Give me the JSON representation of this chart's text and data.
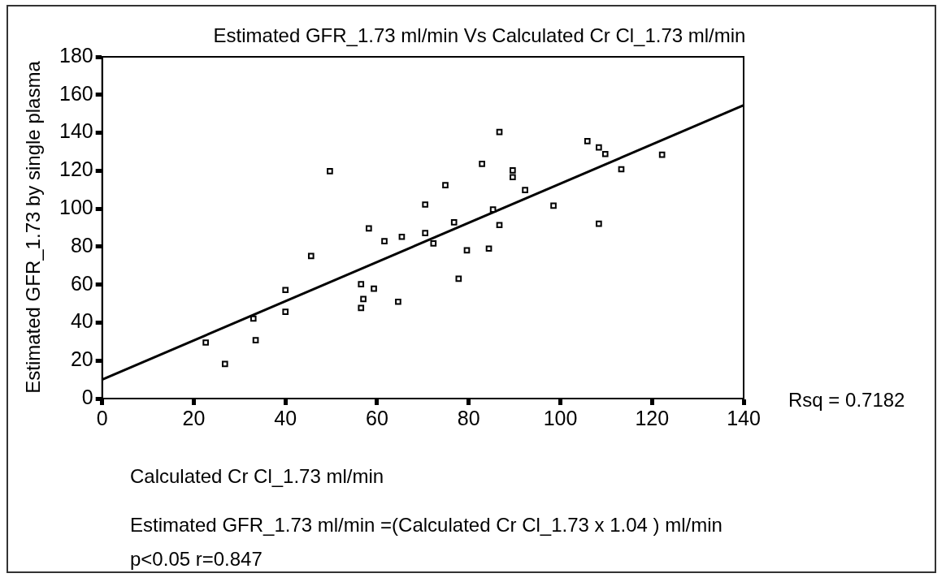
{
  "chart_data": {
    "type": "scatter",
    "title": "Estimated GFR_1.73 ml/min Vs Calculated Cr Cl_1.73 ml/min",
    "xlabel": "Calculated Cr Cl_1.73 ml/min",
    "ylabel": "Estimated GFR_1.73 by single plasma",
    "xlim": [
      0,
      140
    ],
    "xticks": [
      0,
      20,
      40,
      60,
      80,
      100,
      120,
      140
    ],
    "ylim": [
      0,
      180
    ],
    "yticks": [
      0,
      20,
      40,
      60,
      80,
      100,
      120,
      140,
      160,
      180
    ],
    "grid": false,
    "legend": false,
    "series": [
      {
        "marker": "square",
        "color": "#000000",
        "x": [
          22.6,
          26.8,
          33.0,
          33.5,
          40.0,
          40.0,
          45.6,
          49.7,
          56.5,
          57.0,
          56.5,
          59.3,
          64.6,
          58.2,
          61.6,
          65.4,
          70.5,
          70.5,
          72.3,
          74.9,
          76.8,
          77.8,
          79.6,
          82.9,
          84.4,
          85.3,
          86.7,
          86.7,
          89.6,
          89.6,
          92.3,
          98.5,
          105.9,
          108.4,
          108.4,
          109.8,
          113.3,
          122.2
        ],
        "values": [
          29.5,
          18.2,
          42.1,
          30.7,
          57.2,
          45.7,
          75.1,
          119.8,
          60.2,
          52.4,
          47.7,
          57.9,
          51.0,
          89.6,
          82.9,
          85.2,
          102.2,
          87.2,
          81.7,
          112.4,
          92.8,
          63.1,
          78.1,
          123.6,
          79.0,
          99.6,
          140.4,
          91.4,
          120.2,
          116.6,
          109.8,
          101.6,
          135.6,
          132.3,
          92.1,
          128.8,
          120.8,
          128.4
        ]
      },
      {
        "type": "line",
        "color": "#000000",
        "x": [
          0,
          140
        ],
        "values": [
          10,
          154.5
        ]
      }
    ],
    "annotations": [
      "Rsq = 0.7182",
      "Estimated GFR_1.73 ml/min =(Calculated Cr Cl_1.73 x 1.04 ) ml/min",
      "p<0.05 r=0.847"
    ]
  }
}
